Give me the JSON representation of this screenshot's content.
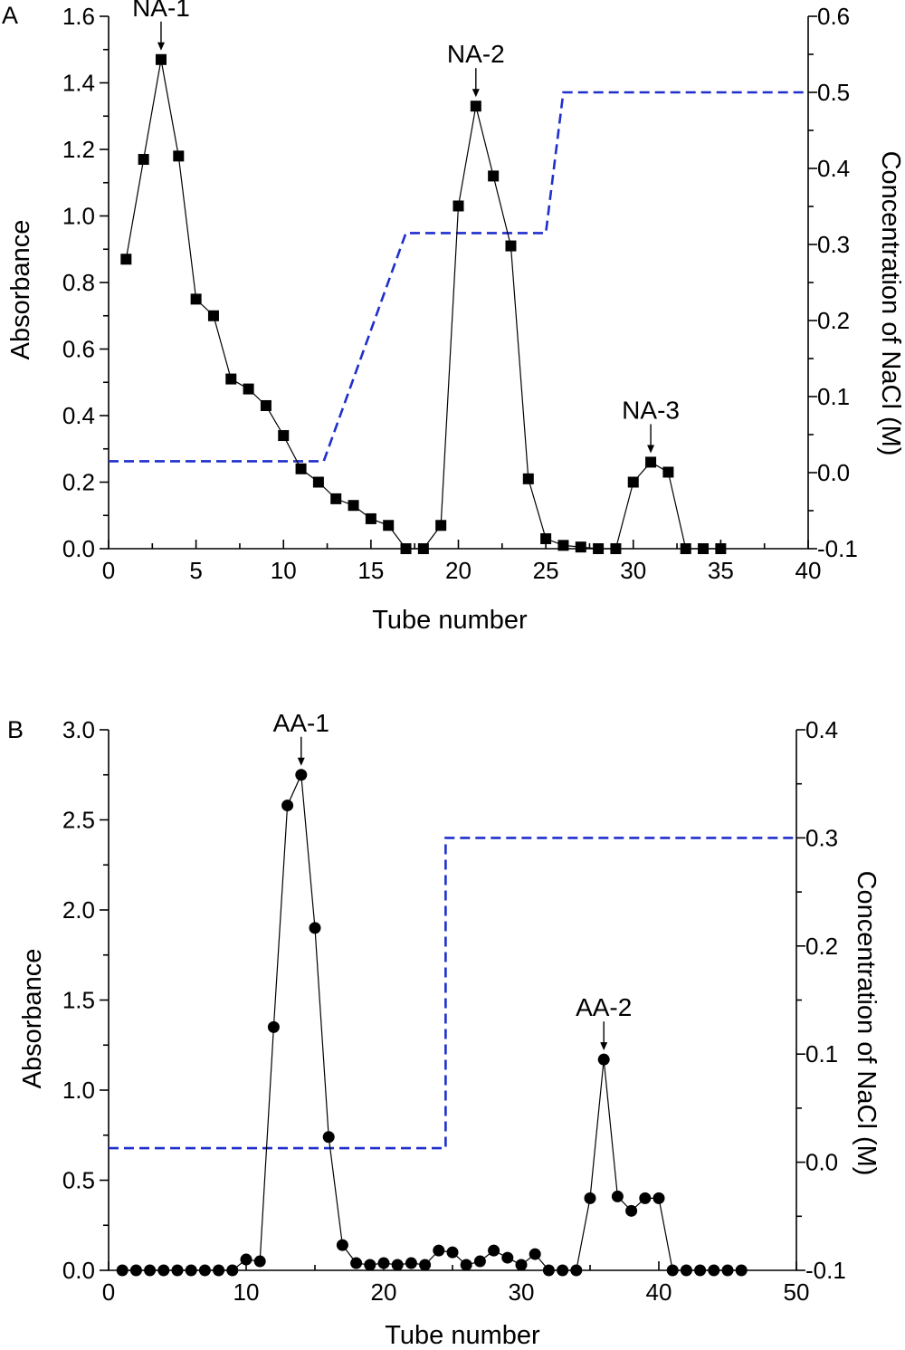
{
  "chart_data": [
    {
      "panel": "A",
      "type": "line",
      "xlabel": "Tube number",
      "ylabel": "Absorbance",
      "y2label": "Concentration of NaCl (M)",
      "xlim": [
        0,
        40
      ],
      "ylim": [
        0,
        1.6
      ],
      "y2lim": [
        -0.1,
        0.6
      ],
      "xticks": [
        "0",
        "5",
        "10",
        "15",
        "20",
        "25",
        "30",
        "35",
        "40"
      ],
      "yticks": [
        "0.0",
        "0.2",
        "0.4",
        "0.6",
        "0.8",
        "1.0",
        "1.2",
        "1.4",
        "1.6"
      ],
      "y2ticks": [
        "-0.1",
        "0.0",
        "0.1",
        "0.2",
        "0.3",
        "0.4",
        "0.5",
        "0.6"
      ],
      "marker": "square",
      "series": [
        {
          "x": [
            1,
            2,
            3,
            4,
            5,
            6,
            7,
            8,
            9,
            10,
            11,
            12,
            13,
            14,
            15,
            16,
            17,
            18,
            19,
            20,
            21,
            22,
            23,
            24,
            25,
            26,
            27,
            28,
            29,
            30,
            31,
            32,
            33,
            34,
            35
          ],
          "values": [
            0.87,
            1.17,
            1.47,
            1.18,
            0.75,
            0.7,
            0.51,
            0.48,
            0.43,
            0.34,
            0.24,
            0.2,
            0.15,
            0.13,
            0.09,
            0.07,
            0.0,
            0.0,
            0.07,
            1.03,
            1.33,
            1.12,
            0.91,
            0.21,
            0.03,
            0.01,
            0.005,
            0.0,
            0.0,
            0.2,
            0.26,
            0.23,
            0.0,
            0.0,
            0.0
          ]
        },
        {
          "axis": "right",
          "style": "dashed",
          "color": "#1f2fcc",
          "x": [
            0,
            12.3,
            17,
            25,
            26,
            40
          ],
          "values": [
            0.015,
            0.015,
            0.315,
            0.315,
            0.5,
            0.5
          ]
        }
      ],
      "annotations": [
        {
          "text": "NA-1",
          "x": 3,
          "y": 1.47
        },
        {
          "text": "NA-2",
          "x": 21,
          "y": 1.33
        },
        {
          "text": "NA-3",
          "x": 31,
          "y": 0.26
        }
      ]
    },
    {
      "panel": "B",
      "type": "line",
      "xlabel": "Tube number",
      "ylabel": "Absorbance",
      "y2label": "Concentration of NaCl (M)",
      "xlim": [
        0,
        50
      ],
      "ylim": [
        0,
        3.0
      ],
      "y2lim": [
        -0.1,
        0.4
      ],
      "xticks": [
        "0",
        "10",
        "20",
        "30",
        "40",
        "50"
      ],
      "yticks": [
        "0.0",
        "0.5",
        "1.0",
        "1.5",
        "2.0",
        "2.5",
        "3.0"
      ],
      "y2ticks": [
        "-0.1",
        "0.0",
        "0.1",
        "0.2",
        "0.3",
        "0.4"
      ],
      "marker": "circle",
      "series": [
        {
          "x": [
            1,
            2,
            3,
            4,
            5,
            6,
            7,
            8,
            9,
            10,
            11,
            12,
            13,
            14,
            15,
            16,
            17,
            18,
            19,
            20,
            21,
            22,
            23,
            24,
            25,
            26,
            27,
            28,
            29,
            30,
            31,
            32,
            33,
            34,
            35,
            36,
            37,
            38,
            39,
            40,
            41,
            42,
            43,
            44,
            45,
            46
          ],
          "values": [
            0,
            0,
            0,
            0,
            0,
            0,
            0,
            0,
            0,
            0.06,
            0.05,
            1.35,
            2.58,
            2.75,
            1.9,
            0.74,
            0.14,
            0.04,
            0.03,
            0.04,
            0.03,
            0.04,
            0.03,
            0.11,
            0.1,
            0.03,
            0.05,
            0.11,
            0.07,
            0.03,
            0.09,
            0,
            0,
            0,
            0.4,
            1.17,
            0.41,
            0.33,
            0.4,
            0.4,
            0,
            0,
            0,
            0,
            0,
            0
          ]
        },
        {
          "axis": "right",
          "style": "dashed",
          "color": "#1f2fcc",
          "x": [
            0,
            24.5,
            24.5,
            50
          ],
          "values": [
            0.013,
            0.013,
            0.3,
            0.3
          ]
        }
      ],
      "annotations": [
        {
          "text": "AA-1",
          "x": 14,
          "y": 2.75
        },
        {
          "text": "AA-2",
          "x": 36,
          "y": 1.17
        }
      ]
    }
  ]
}
